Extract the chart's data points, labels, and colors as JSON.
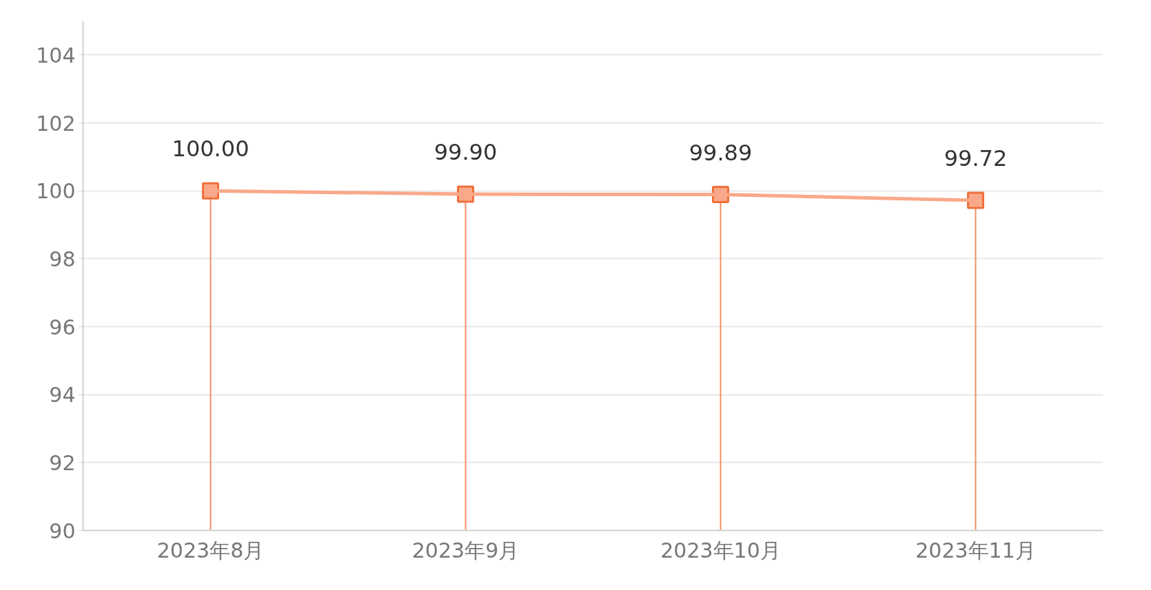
{
  "chart_data": {
    "type": "lollipop",
    "categories": [
      "2023年8月",
      "2023年9月",
      "2023年10月",
      "2023年11月"
    ],
    "series": [
      {
        "color": "#f0703a",
        "values": [
          100.0,
          99.9,
          99.89,
          99.72
        ],
        "value_labels": [
          "100.00",
          "99.90",
          "99.89",
          "99.72"
        ]
      },
      {
        "type": "line",
        "color": "#f9a98a",
        "values": [
          100.0,
          99.9,
          99.89,
          99.72
        ]
      }
    ],
    "ylim": [
      90,
      105
    ],
    "yticks": [
      90,
      92,
      94,
      96,
      98,
      100,
      102,
      104
    ],
    "grid": "y",
    "marker": "square"
  }
}
